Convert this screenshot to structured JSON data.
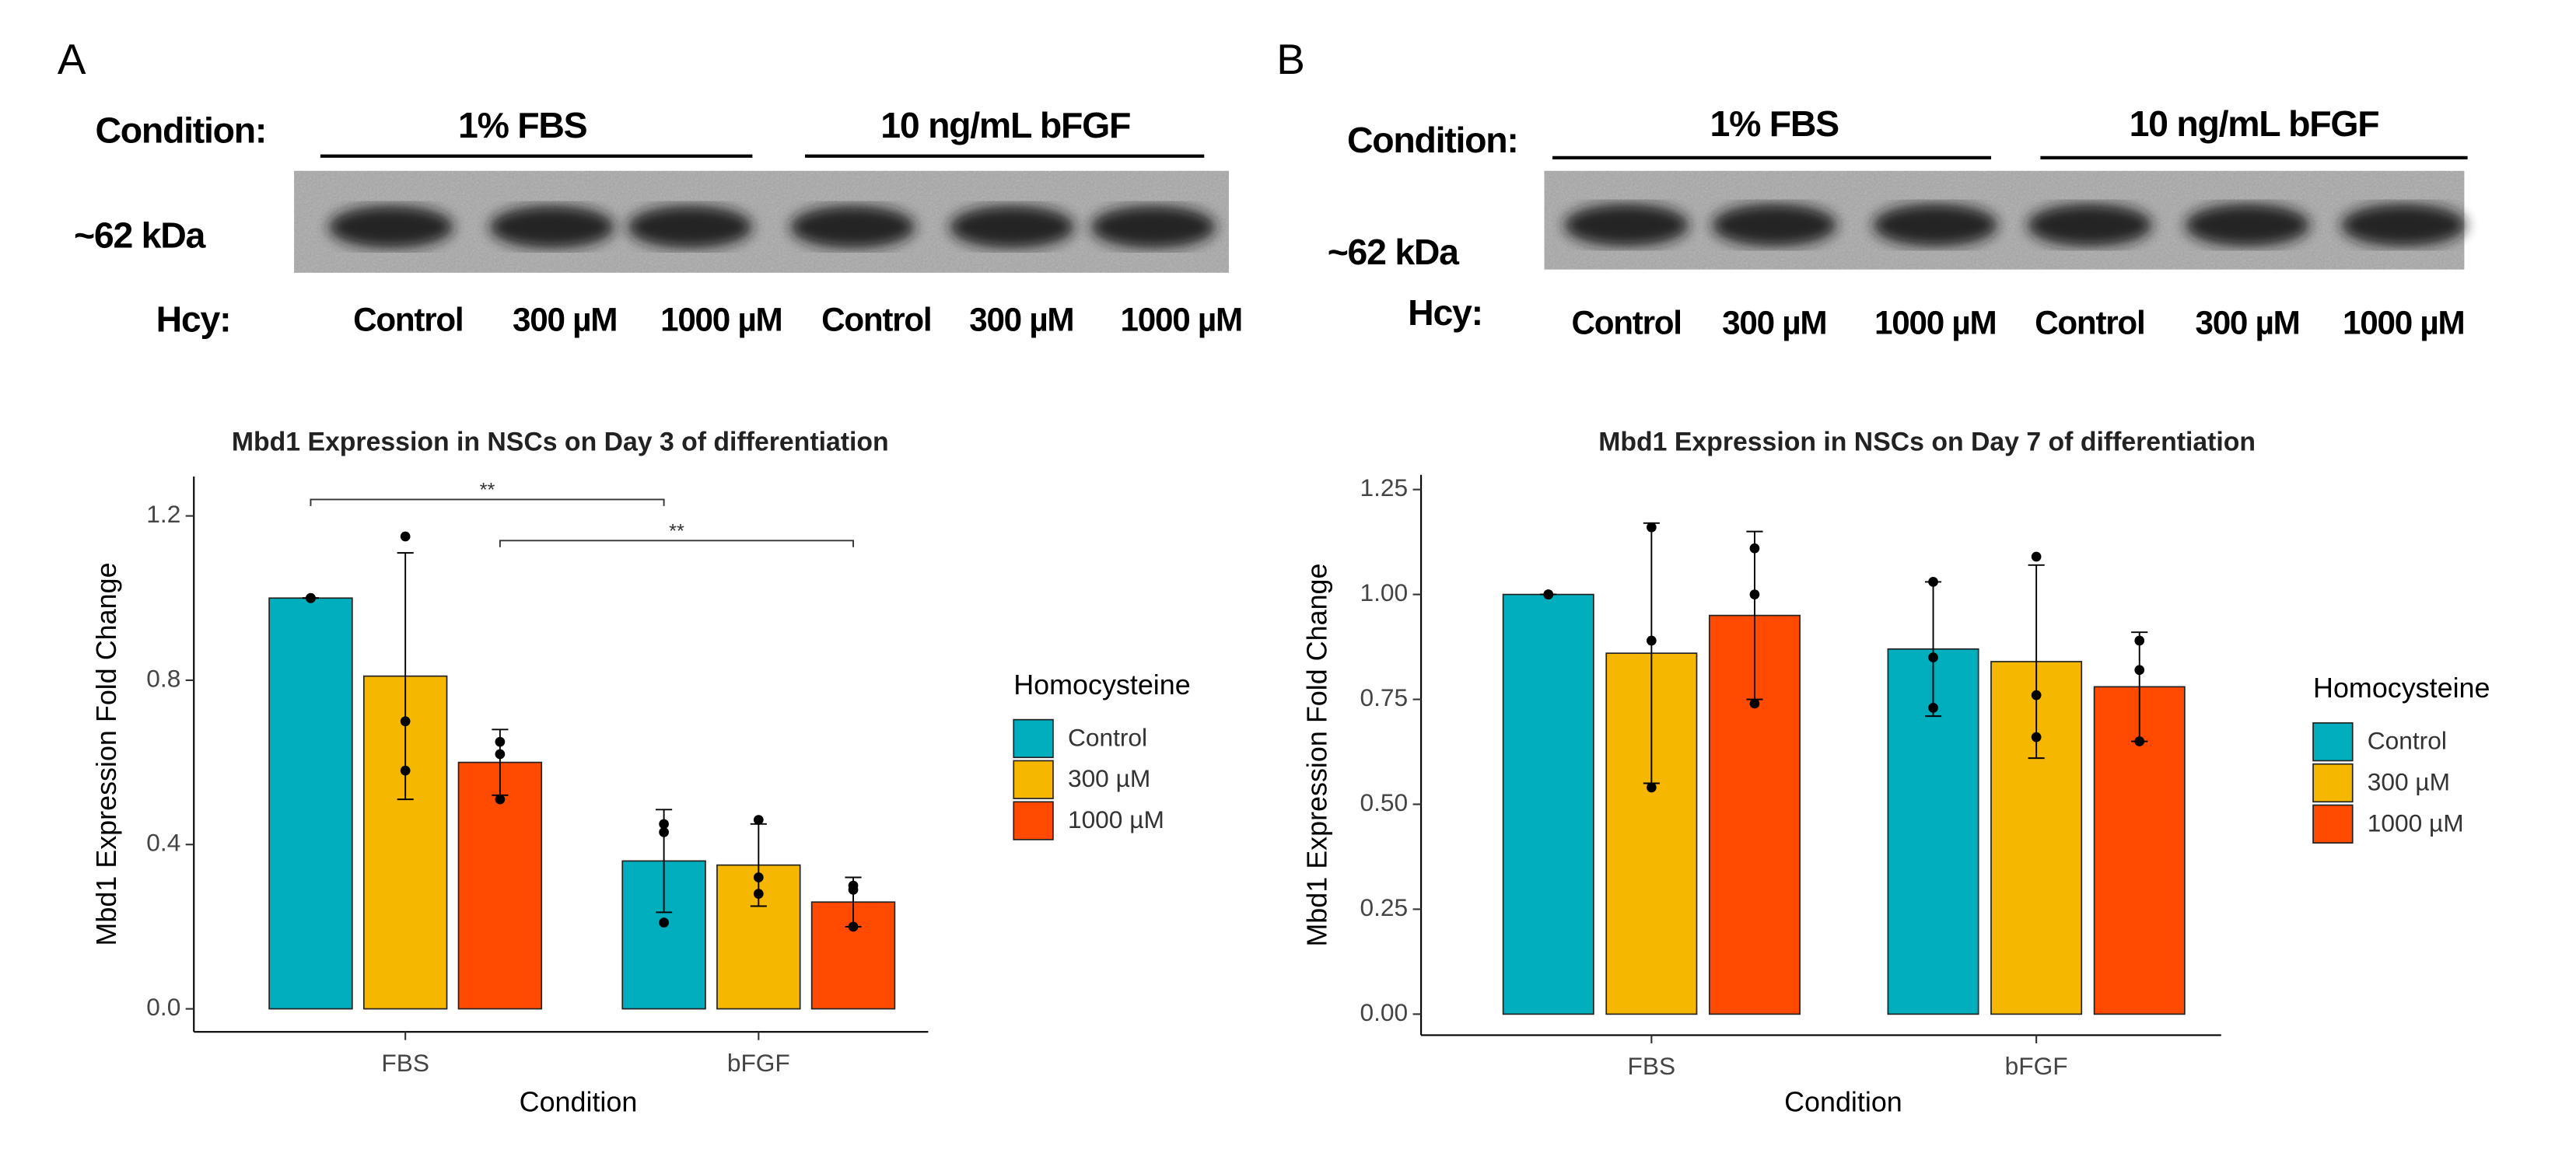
{
  "blots": [
    {
      "panel": "A",
      "condition_label": "Condition:",
      "groups": [
        "1% FBS",
        "10 ng/mL bFGF"
      ],
      "size_label": "~62 kDa",
      "hcy_label": "Hcy:",
      "lanes": [
        "Control",
        "300 µM",
        "1000 µM",
        "Control",
        "300 µM",
        "1000 µM"
      ]
    },
    {
      "panel": "B",
      "condition_label": "Condition:",
      "groups": [
        "1% FBS",
        "10 ng/mL bFGF"
      ],
      "size_label": "~62 kDa",
      "hcy_label": "Hcy:",
      "lanes": [
        "Control",
        "300 µM",
        "1000 µM",
        "Control",
        "300 µM",
        "1000 µM"
      ]
    }
  ],
  "chart_data": [
    {
      "type": "bar",
      "title": "Mbd1 Expression in NSCs on Day 3 of differentiation",
      "x_label": "Condition",
      "y_label": "Mbd1 Expression Fold Change",
      "categories": [
        "FBS",
        "bFGF"
      ],
      "legend_title": "Homocysteine",
      "ylim": [
        -0.056,
        1.296
      ],
      "yticks": [
        {
          "value": 0,
          "label": "0.0"
        },
        0.4,
        0.8,
        1.2
      ],
      "series": [
        {
          "name": "Control",
          "color": "#00AEBD",
          "values": [
            1.0,
            0.36
          ],
          "errors": [
            0,
            0.125
          ],
          "points": [
            [
              1.0,
              1.0,
              1.0
            ],
            [
              0.45,
              0.43,
              0.21
            ]
          ]
        },
        {
          "name": "300 µM",
          "color": "#F5B700",
          "values": [
            0.81,
            0.35
          ],
          "errors": [
            0.3,
            0.1
          ],
          "points": [
            [
              1.15,
              0.7,
              0.58
            ],
            [
              0.46,
              0.32,
              0.28
            ]
          ]
        },
        {
          "name": "1000 µM",
          "color": "#FF4A00",
          "values": [
            0.6,
            0.26
          ],
          "errors": [
            0.08,
            0.06
          ],
          "points": [
            [
              0.65,
              0.62,
              0.51
            ],
            [
              0.3,
              0.29,
              0.2
            ]
          ]
        }
      ],
      "annotations": [
        {
          "text": "**",
          "from": [
            0,
            0
          ],
          "to": [
            1,
            0
          ],
          "y": 1.24
        },
        {
          "text": "**",
          "from": [
            0,
            2
          ],
          "to": [
            1,
            2
          ],
          "y": 1.14
        }
      ]
    },
    {
      "type": "bar",
      "title": "Mbd1 Expression in NSCs on Day 7 of differentiation",
      "x_label": "Condition",
      "y_label": "Mbd1 Expression Fold Change",
      "categories": [
        "FBS",
        "bFGF"
      ],
      "legend_title": "Homocysteine",
      "ylim": [
        -0.05,
        1.285
      ],
      "yticks": [
        {
          "value": 0,
          "label": "0.00"
        },
        0.25,
        {
          "value": 0.5,
          "label": "0.50"
        },
        0.75,
        {
          "value": 1,
          "label": "1.00"
        },
        1.25
      ],
      "series": [
        {
          "name": "Control",
          "color": "#00AEBD",
          "values": [
            1.0,
            0.87
          ],
          "errors": [
            0,
            0.16
          ],
          "points": [
            [
              1.0,
              1.0,
              1.0
            ],
            [
              1.03,
              0.85,
              0.73
            ]
          ]
        },
        {
          "name": "300 µM",
          "color": "#F5B700",
          "values": [
            0.86,
            0.84
          ],
          "errors": [
            0.31,
            0.23
          ],
          "points": [
            [
              1.16,
              0.89,
              0.54
            ],
            [
              1.09,
              0.76,
              0.66
            ]
          ]
        },
        {
          "name": "1000 µM",
          "color": "#FF4A00",
          "values": [
            0.95,
            0.78
          ],
          "errors": [
            0.2,
            0.13
          ],
          "points": [
            [
              1.11,
              1.0,
              0.74
            ],
            [
              0.89,
              0.82,
              0.65
            ]
          ]
        }
      ],
      "annotations": []
    }
  ]
}
